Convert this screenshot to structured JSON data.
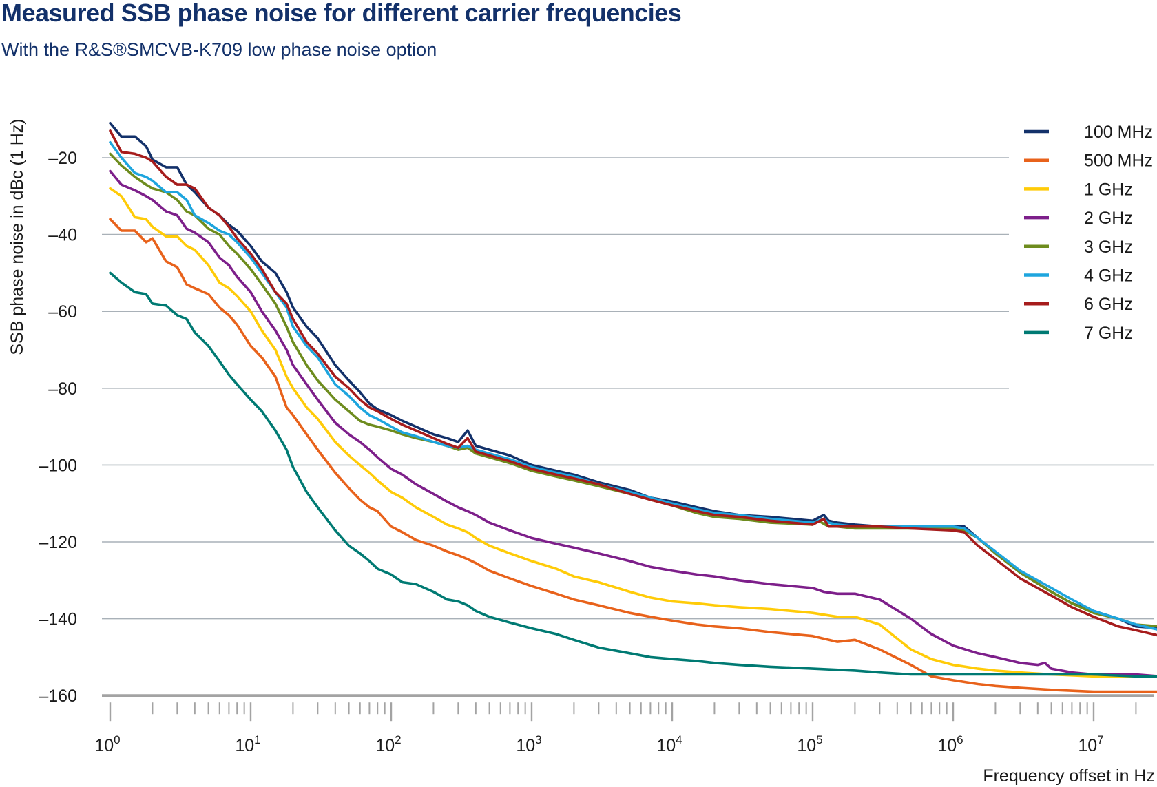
{
  "chart_data": {
    "type": "line",
    "title": "Measured SSB phase noise for different carrier frequencies",
    "subtitle": "With the R&S®SMCVB-K709 low phase noise option",
    "xlabel": "Frequency offset in Hz",
    "ylabel": "SSB phase noise in dBc (1 Hz)",
    "xscale": "log",
    "xlim": [
      1,
      30000000
    ],
    "ylim": [
      -160,
      -10
    ],
    "yticks": [
      -20,
      -40,
      -60,
      -80,
      -100,
      -120,
      -140,
      -160
    ],
    "ytick_labels": [
      "–20",
      "–40",
      "–60",
      "–80",
      "–100",
      "–120",
      "–140",
      "–160"
    ],
    "xticks": [
      1,
      10,
      100,
      1000,
      10000,
      100000,
      1000000,
      10000000
    ],
    "xtick_labels": [
      {
        "base": "10",
        "exp": "0"
      },
      {
        "base": "10",
        "exp": "1"
      },
      {
        "base": "10",
        "exp": "2"
      },
      {
        "base": "10",
        "exp": "3"
      },
      {
        "base": "10",
        "exp": "4"
      },
      {
        "base": "10",
        "exp": "5"
      },
      {
        "base": "10",
        "exp": "6"
      },
      {
        "base": "10",
        "exp": "7"
      }
    ],
    "grid": "horizontal",
    "legend_position": "top-right",
    "series": [
      {
        "name": "100 MHz",
        "color": "#13316a",
        "x": [
          1,
          1.2,
          1.5,
          1.8,
          2,
          2.5,
          3,
          3.5,
          4,
          5,
          6,
          7,
          8,
          10,
          12,
          15,
          18,
          20,
          25,
          30,
          40,
          50,
          60,
          70,
          80,
          100,
          120,
          150,
          200,
          250,
          300,
          350,
          400,
          500,
          700,
          1000,
          1500,
          2000,
          3000,
          5000,
          7000,
          10000,
          15000,
          20000,
          30000,
          50000,
          100000,
          120000,
          130000,
          150000,
          200000,
          300000,
          500000,
          1000000,
          1200000,
          1500000,
          2000000,
          3000000,
          5000000,
          7000000,
          10000000,
          15000000,
          20000000,
          30000000
        ],
        "y": [
          -11,
          -14.5,
          -14.5,
          -17,
          -20.5,
          -22.5,
          -22.5,
          -27,
          -29,
          -33,
          -35,
          -37.5,
          -39,
          -43,
          -47,
          -50,
          -55,
          -59,
          -64,
          -67,
          -74,
          -78,
          -81,
          -84,
          -85.5,
          -87,
          -88.5,
          -90,
          -92,
          -93,
          -94,
          -91,
          -95,
          -96,
          -97.5,
          -100,
          -101.5,
          -102.5,
          -104.5,
          -106.5,
          -108.5,
          -109.5,
          -111,
          -112,
          -113,
          -113.5,
          -114.5,
          -113,
          -114.5,
          -115,
          -115.5,
          -116,
          -116,
          -116,
          -116,
          -119,
          -123,
          -128,
          -133,
          -136,
          -138,
          -140,
          -142,
          -142.5
        ]
      },
      {
        "name": "500 MHz",
        "color": "#e8621b",
        "x": [
          1,
          1.2,
          1.5,
          1.8,
          2,
          2.5,
          3,
          3.5,
          4,
          5,
          6,
          7,
          8,
          10,
          12,
          15,
          18,
          20,
          25,
          30,
          40,
          50,
          60,
          70,
          80,
          100,
          120,
          150,
          200,
          250,
          300,
          350,
          400,
          500,
          700,
          1000,
          1500,
          2000,
          3000,
          5000,
          7000,
          10000,
          15000,
          20000,
          30000,
          50000,
          100000,
          150000,
          200000,
          300000,
          500000,
          700000,
          1000000,
          1500000,
          2000000,
          3000000,
          5000000,
          10000000,
          20000000,
          30000000
        ],
        "y": [
          -36,
          -39,
          -39,
          -42,
          -41,
          -47,
          -48.5,
          -53,
          -54,
          -55.5,
          -59,
          -61,
          -63.5,
          -69,
          -72,
          -77,
          -85,
          -87,
          -92,
          -96,
          -102,
          -106,
          -109,
          -111,
          -112,
          -116,
          -117.5,
          -119.5,
          -121,
          -122.5,
          -123.5,
          -124.5,
          -125.5,
          -127.5,
          -129.5,
          -131.5,
          -133.5,
          -135,
          -136.5,
          -138.5,
          -139.5,
          -140.5,
          -141.5,
          -142,
          -142.5,
          -143.5,
          -144.5,
          -146,
          -145.5,
          -148,
          -152,
          -155,
          -156,
          -157,
          -157.5,
          -158,
          -158.5,
          -159,
          -159,
          -159
        ]
      },
      {
        "name": "1 GHz",
        "color": "#ffcb08",
        "x": [
          1,
          1.2,
          1.5,
          1.8,
          2,
          2.5,
          3,
          3.5,
          4,
          5,
          6,
          7,
          8,
          10,
          12,
          15,
          18,
          20,
          25,
          30,
          40,
          50,
          60,
          70,
          80,
          100,
          120,
          150,
          200,
          250,
          300,
          350,
          400,
          500,
          700,
          1000,
          1500,
          2000,
          3000,
          5000,
          7000,
          10000,
          15000,
          20000,
          30000,
          50000,
          100000,
          150000,
          200000,
          300000,
          500000,
          700000,
          1000000,
          1500000,
          2000000,
          3000000,
          5000000,
          10000000,
          20000000,
          30000000
        ],
        "y": [
          -28,
          -30,
          -35.5,
          -36,
          -38,
          -40.5,
          -40.5,
          -43,
          -44,
          -48,
          -52.5,
          -54,
          -56,
          -60,
          -65,
          -70,
          -77,
          -80,
          -85,
          -88,
          -94,
          -97.5,
          -100,
          -102,
          -104,
          -107,
          -108.5,
          -111,
          -113.5,
          -115.5,
          -116.5,
          -117.5,
          -119,
          -121,
          -123,
          -125,
          -127,
          -129,
          -130.5,
          -133,
          -134.5,
          -135.5,
          -136,
          -136.5,
          -137,
          -137.5,
          -138.5,
          -139.5,
          -139.5,
          -141.5,
          -148,
          -150.5,
          -152,
          -153,
          -153.5,
          -154,
          -154.5,
          -155,
          -155,
          -155
        ]
      },
      {
        "name": "2 GHz",
        "color": "#7d1f8a",
        "x": [
          1,
          1.2,
          1.5,
          1.8,
          2,
          2.5,
          3,
          3.5,
          4,
          5,
          6,
          7,
          8,
          10,
          12,
          15,
          18,
          20,
          25,
          30,
          40,
          50,
          60,
          70,
          80,
          100,
          120,
          150,
          200,
          250,
          300,
          350,
          400,
          500,
          700,
          1000,
          1500,
          2000,
          3000,
          5000,
          7000,
          10000,
          15000,
          20000,
          30000,
          50000,
          100000,
          120000,
          150000,
          200000,
          300000,
          500000,
          700000,
          1000000,
          1500000,
          2000000,
          3000000,
          4000000,
          4500000,
          5000000,
          7000000,
          10000000,
          20000000,
          30000000
        ],
        "y": [
          -23.5,
          -27,
          -28.5,
          -30,
          -31,
          -34,
          -35,
          -38.5,
          -39.5,
          -42,
          -46,
          -48,
          -51,
          -55,
          -60,
          -65,
          -70,
          -74,
          -79,
          -83,
          -89,
          -92,
          -94,
          -96,
          -98,
          -101,
          -102.5,
          -105,
          -107.5,
          -109.5,
          -111,
          -112,
          -113,
          -115,
          -117,
          -119,
          -120.5,
          -121.5,
          -123,
          -125,
          -126.5,
          -127.5,
          -128.5,
          -129,
          -130,
          -131,
          -132,
          -133,
          -133.5,
          -133.5,
          -135,
          -140,
          -144,
          -147,
          -149,
          -150,
          -151.5,
          -152,
          -151.5,
          -153,
          -154,
          -154.5,
          -154.5,
          -155
        ]
      },
      {
        "name": "3 GHz",
        "color": "#6e8c1e",
        "x": [
          1,
          1.2,
          1.5,
          1.8,
          2,
          2.5,
          3,
          3.5,
          4,
          5,
          6,
          7,
          8,
          10,
          12,
          15,
          18,
          20,
          25,
          30,
          40,
          50,
          60,
          70,
          80,
          100,
          120,
          150,
          200,
          250,
          300,
          350,
          400,
          500,
          700,
          1000,
          1500,
          2000,
          3000,
          5000,
          7000,
          10000,
          15000,
          20000,
          30000,
          50000,
          100000,
          110000,
          130000,
          150000,
          200000,
          300000,
          500000,
          1000000,
          1200000,
          1500000,
          2000000,
          3000000,
          5000000,
          7000000,
          10000000,
          15000000,
          20000000,
          30000000
        ],
        "y": [
          -19,
          -22,
          -25,
          -27,
          -28,
          -29,
          -31,
          -34,
          -35,
          -38.5,
          -40,
          -43,
          -45,
          -49,
          -53,
          -58,
          -64,
          -68,
          -74,
          -78,
          -83,
          -86,
          -88.5,
          -89.5,
          -90,
          -91,
          -92,
          -93,
          -94,
          -95,
          -96,
          -95.5,
          -97,
          -98,
          -99.5,
          -101.5,
          -103,
          -104,
          -105.5,
          -107.5,
          -109,
          -110.5,
          -112.5,
          -113.5,
          -114,
          -115,
          -115.5,
          -114.5,
          -116,
          -116,
          -116.5,
          -116.5,
          -116.5,
          -116.5,
          -117,
          -119,
          -123,
          -128,
          -133,
          -136,
          -138.5,
          -140,
          -141.5,
          -142
        ]
      },
      {
        "name": "4 GHz",
        "color": "#1ea5de",
        "x": [
          1,
          1.2,
          1.5,
          1.8,
          2,
          2.5,
          3,
          3.5,
          4,
          5,
          6,
          7,
          8,
          10,
          12,
          15,
          18,
          20,
          25,
          30,
          40,
          50,
          60,
          70,
          80,
          100,
          120,
          150,
          200,
          250,
          300,
          350,
          400,
          500,
          700,
          1000,
          1500,
          2000,
          3000,
          5000,
          7000,
          10000,
          15000,
          20000,
          30000,
          50000,
          100000,
          120000,
          130000,
          150000,
          200000,
          300000,
          500000,
          1000000,
          1200000,
          1500000,
          2000000,
          3000000,
          5000000,
          7000000,
          10000000,
          15000000,
          20000000,
          30000000
        ],
        "y": [
          -16,
          -20,
          -24,
          -25,
          -26,
          -29,
          -29,
          -31,
          -35,
          -37,
          -39,
          -40,
          -42,
          -46,
          -50,
          -55,
          -59,
          -64,
          -69,
          -72,
          -79,
          -82,
          -85,
          -87,
          -88,
          -90,
          -91.5,
          -92.5,
          -94,
          -95,
          -95.5,
          -95,
          -96,
          -97,
          -98.5,
          -100.5,
          -102,
          -103,
          -105,
          -107,
          -108.5,
          -110,
          -111.5,
          -112.5,
          -113,
          -114,
          -115,
          -114,
          -115,
          -115.5,
          -116,
          -116,
          -116,
          -116,
          -116.5,
          -119,
          -122.5,
          -127.5,
          -132,
          -135,
          -138,
          -140,
          -141.5,
          -143
        ]
      },
      {
        "name": "6 GHz",
        "color": "#a61c1c",
        "x": [
          1,
          1.2,
          1.5,
          1.8,
          2,
          2.5,
          3,
          3.5,
          4,
          5,
          6,
          7,
          8,
          10,
          12,
          15,
          18,
          20,
          25,
          30,
          40,
          50,
          60,
          70,
          80,
          100,
          120,
          150,
          200,
          250,
          300,
          350,
          400,
          500,
          700,
          1000,
          1500,
          2000,
          3000,
          5000,
          7000,
          10000,
          15000,
          20000,
          30000,
          50000,
          100000,
          120000,
          130000,
          150000,
          200000,
          300000,
          500000,
          1000000,
          1200000,
          1500000,
          2000000,
          3000000,
          5000000,
          7000000,
          10000000,
          15000000,
          20000000,
          30000000
        ],
        "y": [
          -13,
          -18.5,
          -19,
          -20,
          -21,
          -25,
          -27,
          -27,
          -28,
          -33,
          -35,
          -38,
          -41,
          -45,
          -49,
          -55,
          -58,
          -62,
          -68,
          -71,
          -77,
          -80,
          -83,
          -85,
          -86,
          -88,
          -89.5,
          -91,
          -93,
          -94.5,
          -95.5,
          -93,
          -96.5,
          -97.5,
          -99,
          -101,
          -102.5,
          -103.5,
          -105,
          -107.5,
          -109,
          -110.5,
          -112,
          -113,
          -113.5,
          -114.5,
          -115.5,
          -114,
          -116,
          -116,
          -116,
          -116,
          -116.5,
          -117,
          -117.5,
          -121,
          -124.5,
          -129.5,
          -134,
          -137,
          -139.5,
          -142,
          -143,
          -144.5
        ]
      },
      {
        "name": "7 GHz",
        "color": "#007a73",
        "x": [
          1,
          1.2,
          1.5,
          1.8,
          2,
          2.5,
          3,
          3.5,
          4,
          5,
          6,
          7,
          8,
          10,
          12,
          15,
          18,
          20,
          25,
          30,
          40,
          50,
          60,
          70,
          80,
          100,
          120,
          150,
          200,
          250,
          300,
          350,
          400,
          500,
          700,
          1000,
          1500,
          2000,
          3000,
          5000,
          7000,
          10000,
          15000,
          20000,
          30000,
          50000,
          100000,
          200000,
          300000,
          500000,
          700000,
          1000000,
          2000000,
          5000000,
          10000000,
          20000000,
          30000000
        ],
        "y": [
          -50,
          -52.5,
          -55,
          -55.5,
          -58,
          -58.5,
          -61,
          -62,
          -65.5,
          -69,
          -73,
          -76.5,
          -79,
          -83,
          -86,
          -91,
          -96,
          -100.5,
          -107,
          -111,
          -117,
          -121,
          -123,
          -125,
          -127,
          -128.5,
          -130.5,
          -131,
          -133,
          -135,
          -135.5,
          -136.5,
          -138,
          -139.5,
          -141,
          -142.5,
          -144,
          -145.5,
          -147.5,
          -149,
          -150,
          -150.5,
          -151,
          -151.5,
          -152,
          -152.5,
          -153,
          -153.5,
          -154,
          -154.5,
          -154.5,
          -154.5,
          -154.5,
          -154.5,
          -154.5,
          -155,
          -155
        ]
      }
    ]
  }
}
